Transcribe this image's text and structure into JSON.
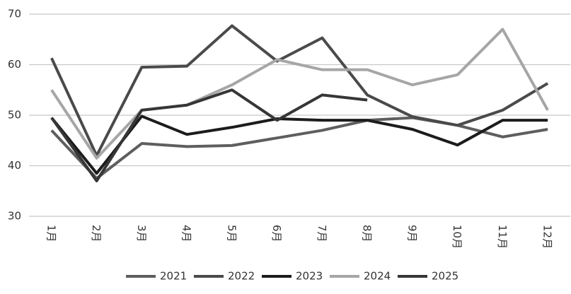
{
  "chart_data": {
    "type": "line",
    "categories": [
      "1月",
      "2月",
      "3月",
      "4月",
      "5月",
      "6月",
      "7月",
      "8月",
      "9月",
      "10月",
      "11月",
      "12月"
    ],
    "series": [
      {
        "name": "2021",
        "color": "#5e5e5e",
        "values": [
          47,
          37.5,
          44.4,
          43.8,
          44,
          45.5,
          47,
          49,
          49.5,
          48,
          45.7,
          47.2
        ]
      },
      {
        "name": "2022",
        "color": "#4a4a4a",
        "values": [
          61.3,
          42,
          59.5,
          59.7,
          67.7,
          60.7,
          65.3,
          54,
          49.7,
          48,
          51,
          56.3
        ]
      },
      {
        "name": "2023",
        "color": "#1c1c1c",
        "values": [
          49.5,
          38.5,
          49.8,
          46.2,
          47.6,
          49.3,
          49,
          49,
          47.2,
          44.1,
          49,
          49
        ]
      },
      {
        "name": "2024",
        "color": "#a6a6a6",
        "values": [
          55,
          41.5,
          51,
          52,
          56,
          61,
          59,
          59,
          56,
          58,
          67,
          51
        ]
      },
      {
        "name": "2025",
        "color": "#363636",
        "values": [
          49.5,
          37,
          51,
          52,
          55,
          49,
          54,
          53,
          null,
          null,
          null,
          null
        ]
      }
    ],
    "ylim": [
      30,
      70
    ],
    "yticks": [
      30,
      40,
      50,
      60,
      70
    ],
    "grid": true,
    "legend": "bottom"
  }
}
